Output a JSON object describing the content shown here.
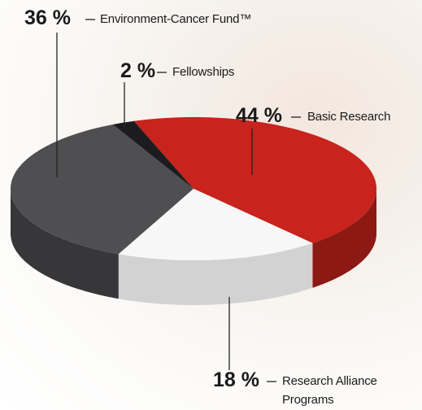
{
  "chart_data": {
    "type": "pie",
    "categories": [
      "Environment-Cancer Fund™",
      "Fellowships",
      "Basic Research",
      "Research Alliance Programs"
    ],
    "values": [
      36,
      2,
      44,
      18
    ],
    "value_labels": [
      "36 %",
      "2 %",
      "44 %",
      "18 %"
    ],
    "colors": [
      "#4f4f51",
      "#1c1c1e",
      "#c8231c",
      "#f7f7f7"
    ]
  }
}
